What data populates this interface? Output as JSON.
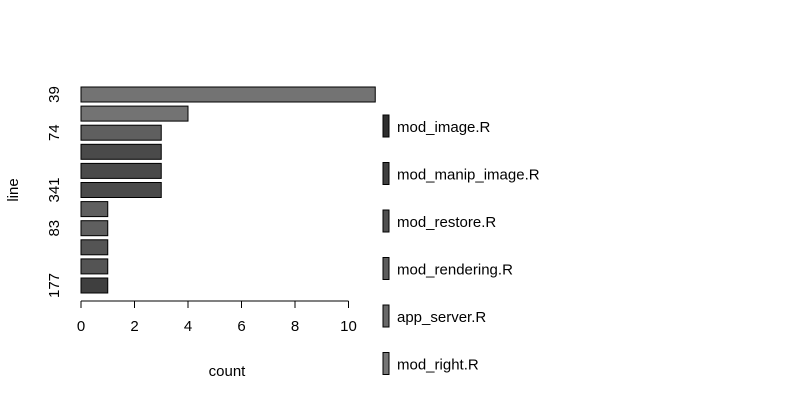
{
  "chart_data": {
    "type": "bar",
    "orientation": "horizontal",
    "title": "",
    "xlabel": "count",
    "ylabel": "line",
    "xlim": [
      0,
      11
    ],
    "xticks": [
      0,
      2,
      4,
      6,
      8,
      10
    ],
    "categories": [
      "39",
      "",
      "74",
      "",
      "",
      "341",
      "",
      "83",
      "",
      "",
      "177"
    ],
    "values": [
      11,
      4,
      3,
      3,
      3,
      3,
      1,
      1,
      1,
      1,
      1
    ],
    "bar_colors": [
      "#737373",
      "#737373",
      "#5f5f5f",
      "#4a4a4a",
      "#4a4a4a",
      "#4a4a4a",
      "#5f5f5f",
      "#5f5f5f",
      "#545454",
      "#545454",
      "#3f3f3f"
    ],
    "legend": {
      "position": "right",
      "entries": [
        {
          "label": "mod_image.R",
          "color": "#2f2f2f"
        },
        {
          "label": "mod_manip_image.R",
          "color": "#404040"
        },
        {
          "label": "mod_restore.R",
          "color": "#505050"
        },
        {
          "label": "mod_rendering.R",
          "color": "#5c5c5c"
        },
        {
          "label": "app_server.R",
          "color": "#696969"
        },
        {
          "label": "mod_right.R",
          "color": "#767676"
        }
      ]
    },
    "grid": false
  }
}
